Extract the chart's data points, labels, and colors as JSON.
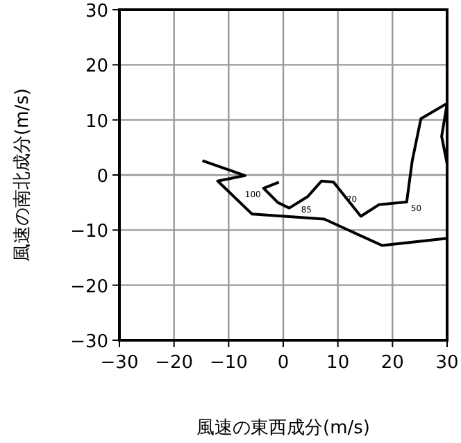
{
  "chart_data": {
    "type": "line",
    "xlabel": "風速の東西成分(m/s)",
    "ylabel": "風速の南北成分(m/s)",
    "series": [
      {
        "color": "#000000",
        "x": [
          -0.8,
          -3.6,
          -1.0,
          1.1,
          4.5,
          7.0,
          9.2,
          14.2,
          17.5,
          22.6,
          23.6,
          25.2,
          30,
          29,
          30,
          30,
          18.1,
          7.5,
          -5.7,
          -12,
          -7,
          -14.8
        ],
        "values": [
          -1.3,
          -2.4,
          -5.0,
          -6.0,
          -3.9,
          -1.1,
          -1.3,
          -7.5,
          -5.4,
          -4.9,
          2.5,
          10.2,
          13,
          7,
          2,
          -11.5,
          -12.8,
          -8.0,
          -7.1,
          -1.1,
          -0.1,
          2.6
        ]
      }
    ],
    "xlim": [
      -30,
      30
    ],
    "ylim": [
      -30,
      30
    ],
    "xticks": [
      -30,
      -20,
      -10,
      0,
      10,
      20,
      30
    ],
    "yticks": [
      -30,
      -20,
      -10,
      0,
      10,
      20,
      30
    ],
    "grid": true,
    "marker": "none",
    "line_style": "solid",
    "annotations": [
      {
        "text": "100",
        "x": -3.6,
        "y": -2.4
      },
      {
        "text": "85",
        "x": 2.5,
        "y": -5.1
      },
      {
        "text": "70",
        "x": 10.8,
        "y": -3.3
      },
      {
        "text": "50",
        "x": 22.6,
        "y": -4.9
      }
    ]
  }
}
